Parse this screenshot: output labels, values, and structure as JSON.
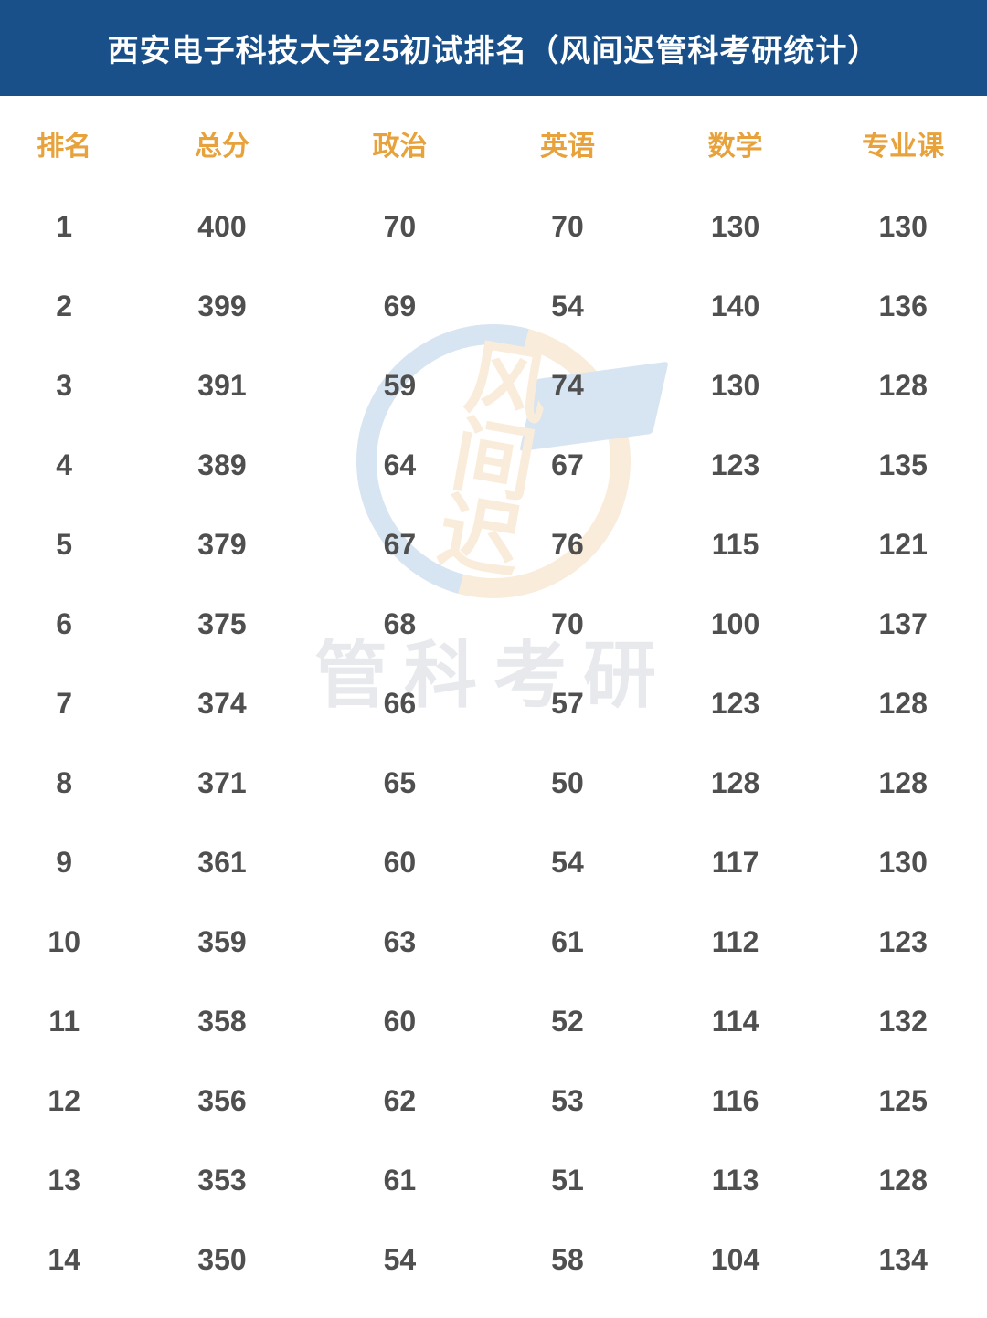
{
  "title": "西安电子科技大学25初试排名（风间迟管科考研统计）",
  "table": {
    "type": "table",
    "header_color": "#e8a23c",
    "header_bg": "#195089",
    "header_fontsize": 30,
    "cell_color": "#4f4f4f",
    "cell_fontsize": 32,
    "background_color": "#ffffff",
    "columns": [
      "排名",
      "总分",
      "政治",
      "英语",
      "数学",
      "专业课"
    ],
    "column_widths_pct": [
      13,
      19,
      17,
      17,
      17,
      17
    ],
    "rows": [
      [
        "1",
        "400",
        "70",
        "70",
        "130",
        "130"
      ],
      [
        "2",
        "399",
        "69",
        "54",
        "140",
        "136"
      ],
      [
        "3",
        "391",
        "59",
        "74",
        "130",
        "128"
      ],
      [
        "4",
        "389",
        "64",
        "67",
        "123",
        "135"
      ],
      [
        "5",
        "379",
        "67",
        "76",
        "115",
        "121"
      ],
      [
        "6",
        "375",
        "68",
        "70",
        "100",
        "137"
      ],
      [
        "7",
        "374",
        "66",
        "57",
        "123",
        "128"
      ],
      [
        "8",
        "371",
        "65",
        "50",
        "128",
        "128"
      ],
      [
        "9",
        "361",
        "60",
        "54",
        "117",
        "130"
      ],
      [
        "10",
        "359",
        "63",
        "61",
        "112",
        "123"
      ],
      [
        "11",
        "358",
        "60",
        "52",
        "114",
        "132"
      ],
      [
        "12",
        "356",
        "62",
        "53",
        "116",
        "125"
      ],
      [
        "13",
        "353",
        "61",
        "51",
        "113",
        "128"
      ],
      [
        "14",
        "350",
        "54",
        "58",
        "104",
        "134"
      ]
    ]
  },
  "watermark": {
    "logo_chars": "风间迟",
    "text": "管科考研",
    "ring_color_a": "#2a6fb5",
    "ring_color_b": "#e89a3c",
    "text_color": "#7d8a9a",
    "opacity": 0.18
  }
}
